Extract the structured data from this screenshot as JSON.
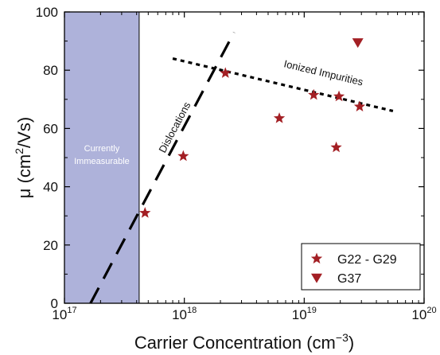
{
  "chart_data": {
    "type": "scatter",
    "xlabel": "Carrier Concentration (cm",
    "xlabel_superscript": "−3",
    "xlabel_suffix": ")",
    "ylabel": "μ (cm",
    "ylabel_superscript": "2",
    "ylabel_suffix": "/Vs)",
    "x_scale": "log",
    "xlim": [
      1e+17,
      1e+20
    ],
    "ylim": [
      0,
      100
    ],
    "x_ticks": [
      {
        "value": 1e+17,
        "base": "10",
        "exp": "17"
      },
      {
        "value": 1e+18,
        "base": "10",
        "exp": "18"
      },
      {
        "value": 1e+19,
        "base": "10",
        "exp": "19"
      },
      {
        "value": 1e+20,
        "base": "10",
        "exp": "20"
      }
    ],
    "y_ticks": [
      0,
      20,
      40,
      60,
      80,
      100
    ],
    "grid": false,
    "legend_position": "bottom-right",
    "series": [
      {
        "name": "G22 - G29",
        "marker": "star",
        "color": "#a31f24",
        "points": [
          {
            "x": 4.7e+17,
            "y": 31
          },
          {
            "x": 9.8e+17,
            "y": 50.5
          },
          {
            "x": 2.2e+18,
            "y": 79
          },
          {
            "x": 6.2e+18,
            "y": 63.5
          },
          {
            "x": 1.2e+19,
            "y": 71.5
          },
          {
            "x": 1.85e+19,
            "y": 53.5
          },
          {
            "x": 1.95e+19,
            "y": 71
          },
          {
            "x": 2.9e+19,
            "y": 67.5
          }
        ]
      },
      {
        "name": "G37",
        "marker": "triangle-down",
        "color": "#a31f24",
        "points": [
          {
            "x": 2.8e+19,
            "y": 89.5
          }
        ]
      }
    ],
    "fit_lines": [
      {
        "label": "Dislocations",
        "style": "dashed",
        "points": [
          {
            "x": 1.65e+17,
            "y": 0
          },
          {
            "x": 2.6e+18,
            "y": 93
          }
        ]
      },
      {
        "label": "Ionized Impurities",
        "style": "dotted",
        "points": [
          {
            "x": 8e+17,
            "y": 84
          },
          {
            "x": 5.5e+19,
            "y": 66
          }
        ]
      }
    ],
    "region": {
      "label_line1": "Currently",
      "label_line2": "Immeasurable",
      "x_start": 1e+17,
      "x_end": 4.2e+17,
      "color": "#aeb2da"
    }
  }
}
